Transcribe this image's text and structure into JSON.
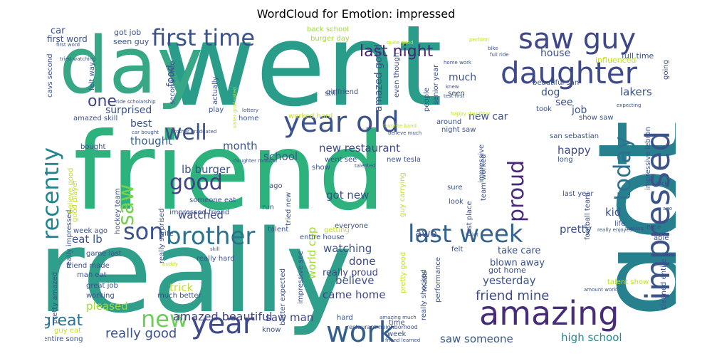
{
  "title": "WordCloud for Emotion: impressed",
  "chart_data": {
    "type": "wordcloud",
    "title": "WordCloud for Emotion: impressed",
    "words": [
      {
        "text": "went",
        "color": "#2a9d8a"
      },
      {
        "text": "friend",
        "color": "#2db27d"
      },
      {
        "text": "really",
        "color": "#2f9e8a"
      },
      {
        "text": "got",
        "color": "#27808e"
      },
      {
        "text": "day",
        "color": "#38a785"
      },
      {
        "text": "amazing",
        "color": "#472c7a"
      },
      {
        "text": "impressed",
        "color": "#3a538b"
      },
      {
        "text": "daughter",
        "color": "#3e4a89"
      },
      {
        "text": "saw guy",
        "color": "#3f4788"
      },
      {
        "text": "year old",
        "color": "#3b528b"
      },
      {
        "text": "work",
        "color": "#355e8d"
      },
      {
        "text": "year",
        "color": "#3e4989"
      },
      {
        "text": "brother",
        "color": "#2c718e"
      },
      {
        "text": "last week",
        "color": "#33628d"
      },
      {
        "text": "first time",
        "color": "#3b528b"
      },
      {
        "text": "recently",
        "color": "#23888e"
      },
      {
        "text": "today",
        "color": "#2c718e"
      },
      {
        "text": "new",
        "color": "#6ccd5a"
      },
      {
        "text": "son",
        "color": "#3b528b"
      },
      {
        "text": "good",
        "color": "#424086"
      },
      {
        "text": "saw",
        "color": "#7ad151"
      },
      {
        "text": "well",
        "color": "#3b528b"
      },
      {
        "text": "proud",
        "color": "#482878"
      },
      {
        "text": "last night",
        "color": "#482475"
      },
      {
        "text": "great",
        "color": "#2c728e"
      },
      {
        "text": "one",
        "color": "#404688"
      },
      {
        "text": "friend mine",
        "color": "#3e4989"
      },
      {
        "text": "really good",
        "color": "#3b528b"
      },
      {
        "text": "amazed beautiful",
        "color": "#414287"
      },
      {
        "text": "saw someone",
        "color": "#38588c"
      },
      {
        "text": "high school",
        "color": "#23888e"
      },
      {
        "text": "yesterday",
        "color": "#3b528b"
      },
      {
        "text": "came home",
        "color": "#404688"
      },
      {
        "text": "believe",
        "color": "#3b528b"
      },
      {
        "text": "watching",
        "color": "#3b528b"
      },
      {
        "text": "done",
        "color": "#3e4989"
      },
      {
        "text": "really proud",
        "color": "#3e4989"
      },
      {
        "text": "world cup",
        "color": "#9fda3a"
      },
      {
        "text": "saw man",
        "color": "#404688"
      },
      {
        "text": "watched",
        "color": "#3e4989"
      },
      {
        "text": "lb burger",
        "color": "#3b528b"
      },
      {
        "text": "new restaurant",
        "color": "#3e4989"
      },
      {
        "text": "school",
        "color": "#3b528b"
      },
      {
        "text": "month",
        "color": "#3b528b"
      },
      {
        "text": "thought",
        "color": "#355e8d"
      },
      {
        "text": "happy",
        "color": "#3e4989"
      },
      {
        "text": "kid",
        "color": "#3b528b"
      },
      {
        "text": "pretty",
        "color": "#3b528b"
      },
      {
        "text": "lakers",
        "color": "#3b528b"
      },
      {
        "text": "house",
        "color": "#3b528b"
      },
      {
        "text": "much",
        "color": "#3b528b"
      },
      {
        "text": "job",
        "color": "#3b528b"
      },
      {
        "text": "see",
        "color": "#3b528b"
      },
      {
        "text": "dog",
        "color": "#3b528b"
      },
      {
        "text": "new car",
        "color": "#3b528b"
      },
      {
        "text": "food",
        "color": "#3b528b"
      },
      {
        "text": "surprised",
        "color": "#3b528b"
      },
      {
        "text": "best",
        "color": "#3b528b"
      },
      {
        "text": "trick",
        "color": "#c2df23"
      },
      {
        "text": "pleased",
        "color": "#9fda3a"
      },
      {
        "text": "eat lb",
        "color": "#3b528b"
      },
      {
        "text": "awe",
        "color": "#3b528b"
      },
      {
        "text": "got new",
        "color": "#3b528b"
      },
      {
        "text": "take care",
        "color": "#3b528b"
      },
      {
        "text": "blown away",
        "color": "#3b528b"
      },
      {
        "text": "got home",
        "color": "#3b528b"
      },
      {
        "text": "car",
        "color": "#3b528b"
      },
      {
        "text": "first word",
        "color": "#3b528b"
      },
      {
        "text": "got job",
        "color": "#3b528b"
      },
      {
        "text": "seen guy",
        "color": "#3b528b"
      },
      {
        "text": "back school",
        "color": "#9fda3a"
      },
      {
        "text": "burger day",
        "color": "#9fda3a"
      },
      {
        "text": "beautiful san",
        "color": "#3b528b"
      },
      {
        "text": "influenced",
        "color": "#c2df23"
      },
      {
        "text": "full time",
        "color": "#3b528b"
      },
      {
        "text": "show saw",
        "color": "#3b528b"
      },
      {
        "text": "san sebastian",
        "color": "#3b528b"
      },
      {
        "text": "last year",
        "color": "#3b528b"
      },
      {
        "text": "football team",
        "color": "#3b528b"
      },
      {
        "text": "impressive lebron",
        "color": "#3b528b"
      },
      {
        "text": "cleaned entire",
        "color": "#3b528b"
      },
      {
        "text": "talent show",
        "color": "#c2df23"
      },
      {
        "text": "able",
        "color": "#3b528b"
      },
      {
        "text": "nice",
        "color": "#3b528b"
      },
      {
        "text": "life",
        "color": "#3b528b"
      },
      {
        "text": "long",
        "color": "#3b528b"
      },
      {
        "text": "amazed good",
        "color": "#3b528b"
      },
      {
        "text": "amazed skill",
        "color": "#3b528b"
      },
      {
        "text": "girlfriend",
        "color": "#3b528b"
      },
      {
        "text": "still",
        "color": "#3b528b"
      },
      {
        "text": "worked hard",
        "color": "#c2df23"
      },
      {
        "text": "night saw",
        "color": "#3b528b"
      },
      {
        "text": "went see",
        "color": "#3b528b"
      },
      {
        "text": "new tesla",
        "color": "#3b528b"
      },
      {
        "text": "around",
        "color": "#3b528b"
      },
      {
        "text": "took",
        "color": "#3b528b"
      },
      {
        "text": "first place",
        "color": "#3b528b"
      },
      {
        "text": "sure",
        "color": "#3b528b"
      },
      {
        "text": "look",
        "color": "#3b528b"
      },
      {
        "text": "everyone",
        "color": "#3b528b"
      },
      {
        "text": "getting",
        "color": "#c2df23"
      },
      {
        "text": "talent",
        "color": "#3b528b"
      },
      {
        "text": "entire house",
        "color": "#3b528b"
      },
      {
        "text": "felt",
        "color": "#3b528b"
      },
      {
        "text": "really shocked",
        "color": "#3b528b"
      },
      {
        "text": "performance",
        "color": "#3b528b"
      },
      {
        "text": "made",
        "color": "#3b528b"
      },
      {
        "text": "time",
        "color": "#3b528b"
      },
      {
        "text": "week",
        "color": "#3b528b"
      },
      {
        "text": "hard",
        "color": "#3b528b"
      },
      {
        "text": "know",
        "color": "#3b528b"
      },
      {
        "text": "better expected",
        "color": "#3b528b"
      },
      {
        "text": "impressive see",
        "color": "#3b528b"
      },
      {
        "text": "really hard",
        "color": "#3b528b"
      },
      {
        "text": "much better",
        "color": "#3b528b"
      },
      {
        "text": "working",
        "color": "#3b528b"
      },
      {
        "text": "great job",
        "color": "#3b528b"
      },
      {
        "text": "man eat",
        "color": "#3b528b"
      },
      {
        "text": "friend made",
        "color": "#3b528b"
      },
      {
        "text": "game last",
        "color": "#3b528b"
      },
      {
        "text": "pretty amazed",
        "color": "#3b528b"
      },
      {
        "text": "week ago",
        "color": "#3b528b"
      },
      {
        "text": "really impressed",
        "color": "#3b528b"
      },
      {
        "text": "someone eat",
        "color": "#3b528b"
      },
      {
        "text": "impressed friend",
        "color": "#3b528b"
      },
      {
        "text": "play",
        "color": "#3b528b"
      },
      {
        "text": "home",
        "color": "#3b528b"
      },
      {
        "text": "run",
        "color": "#3b528b"
      },
      {
        "text": "ago",
        "color": "#3b528b"
      },
      {
        "text": "wife",
        "color": "#3b528b"
      },
      {
        "text": "hockey team",
        "color": "#3b528b"
      },
      {
        "text": "good player",
        "color": "#c2df23"
      },
      {
        "text": "believe good",
        "color": "#c2df23"
      },
      {
        "text": "really surprised",
        "color": "#3b528b"
      },
      {
        "text": "bought",
        "color": "#3b528b"
      },
      {
        "text": "cavs second",
        "color": "#3b528b"
      },
      {
        "text": "second time",
        "color": "#3b528b"
      },
      {
        "text": "actually",
        "color": "#3b528b"
      },
      {
        "text": "felt way",
        "color": "#3b528b"
      },
      {
        "text": "people",
        "color": "#3b528b"
      },
      {
        "text": "even though",
        "color": "#3b528b"
      },
      {
        "text": "senior year",
        "color": "#3b528b"
      },
      {
        "text": "seen",
        "color": "#3b528b"
      },
      {
        "text": "going",
        "color": "#3b528b"
      },
      {
        "text": "entire song",
        "color": "#3b528b"
      },
      {
        "text": "guy eat",
        "color": "#c2df23"
      },
      {
        "text": "restaurant neighborhood",
        "color": "#3b528b"
      },
      {
        "text": "amazing much",
        "color": "#3b528b"
      },
      {
        "text": "friend learned",
        "color": "#3b528b"
      },
      {
        "text": "pretty good",
        "color": "#c2df23"
      },
      {
        "text": "guy carrying",
        "color": "#c2df23"
      },
      {
        "text": "tried new",
        "color": "#3b528b"
      },
      {
        "text": "show",
        "color": "#3b528b"
      },
      {
        "text": "talented",
        "color": "#3b528b"
      },
      {
        "text": "daughter musical",
        "color": "#3b528b"
      },
      {
        "text": "favorite band",
        "color": "#c2df23"
      },
      {
        "text": "believe much",
        "color": "#3b528b"
      },
      {
        "text": "happy daughter",
        "color": "#c2df23"
      },
      {
        "text": "expecting",
        "color": "#3b528b"
      },
      {
        "text": "home work",
        "color": "#3b528b"
      },
      {
        "text": "knew",
        "color": "#3b528b"
      },
      {
        "text": "test first",
        "color": "#3b528b"
      },
      {
        "text": "perform",
        "color": "#c2df23"
      },
      {
        "text": "bike",
        "color": "#3b528b"
      },
      {
        "text": "full ride",
        "color": "#3b528b"
      },
      {
        "text": "back",
        "color": "#3b528b"
      },
      {
        "text": "ago",
        "color": "#3b528b"
      },
      {
        "text": "making",
        "color": "#3b528b"
      },
      {
        "text": "really enjoyed",
        "color": "#3b528b"
      },
      {
        "text": "amount work",
        "color": "#3b528b"
      },
      {
        "text": "quite good",
        "color": "#c2df23"
      },
      {
        "text": "lot",
        "color": "#3b528b"
      },
      {
        "text": "team worked",
        "color": "#3b528b"
      },
      {
        "text": "impressive",
        "color": "#3b528b"
      },
      {
        "text": "skill",
        "color": "#3b528b"
      },
      {
        "text": "buddy",
        "color": "#c2df23"
      },
      {
        "text": "lottery",
        "color": "#3b528b"
      },
      {
        "text": "sister graduated",
        "color": "#c2df23"
      },
      {
        "text": "brother graduated",
        "color": "#3b528b"
      },
      {
        "text": "car bought",
        "color": "#3b528b"
      },
      {
        "text": "ride scholarship",
        "color": "#3b528b"
      },
      {
        "text": "first word",
        "color": "#3b528b"
      },
      {
        "text": "tried watching",
        "color": "#3b528b"
      }
    ]
  }
}
